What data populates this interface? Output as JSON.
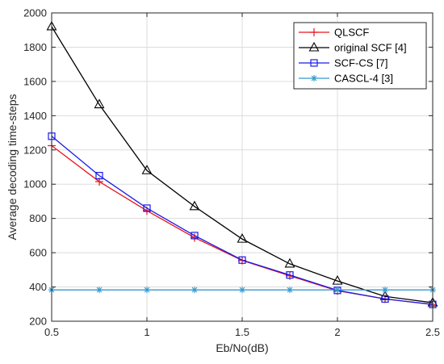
{
  "chart_data": {
    "type": "line",
    "xlabel": "Eb/No(dB)",
    "ylabel": "Average decoding time-steps",
    "xlim": [
      0.5,
      2.5
    ],
    "ylim": [
      200,
      2000
    ],
    "xticks": [
      0.5,
      1,
      1.5,
      2,
      2.5
    ],
    "xtick_labels": [
      "0.5",
      "1",
      "1.5",
      "2",
      "2.5"
    ],
    "yticks": [
      200,
      400,
      600,
      800,
      1000,
      1200,
      1400,
      1600,
      1800,
      2000
    ],
    "ytick_labels": [
      "200",
      "400",
      "600",
      "800",
      "1000",
      "1200",
      "1400",
      "1600",
      "1800",
      "2000"
    ],
    "grid": true,
    "legend_position": "top-right",
    "x": [
      0.5,
      0.75,
      1.0,
      1.25,
      1.5,
      1.75,
      2.0,
      2.25,
      2.5
    ],
    "series": [
      {
        "name": "QLSCF",
        "color": "#e8141c",
        "marker": "plus",
        "values": [
          1225,
          1015,
          845,
          688,
          555,
          465,
          378,
          330,
          298
        ]
      },
      {
        "name": "original SCF [4]",
        "color": "#000000",
        "marker": "triangle",
        "values": [
          1920,
          1465,
          1080,
          870,
          680,
          535,
          435,
          345,
          308
        ]
      },
      {
        "name": "SCF-CS [7]",
        "color": "#1a1ae6",
        "marker": "square",
        "values": [
          1280,
          1050,
          860,
          700,
          557,
          470,
          380,
          330,
          298
        ]
      },
      {
        "name": "CASCL-4 [3]",
        "color": "#3399cc",
        "marker": "star",
        "values": [
          383,
          383,
          383,
          383,
          383,
          383,
          383,
          383,
          383
        ]
      }
    ]
  }
}
